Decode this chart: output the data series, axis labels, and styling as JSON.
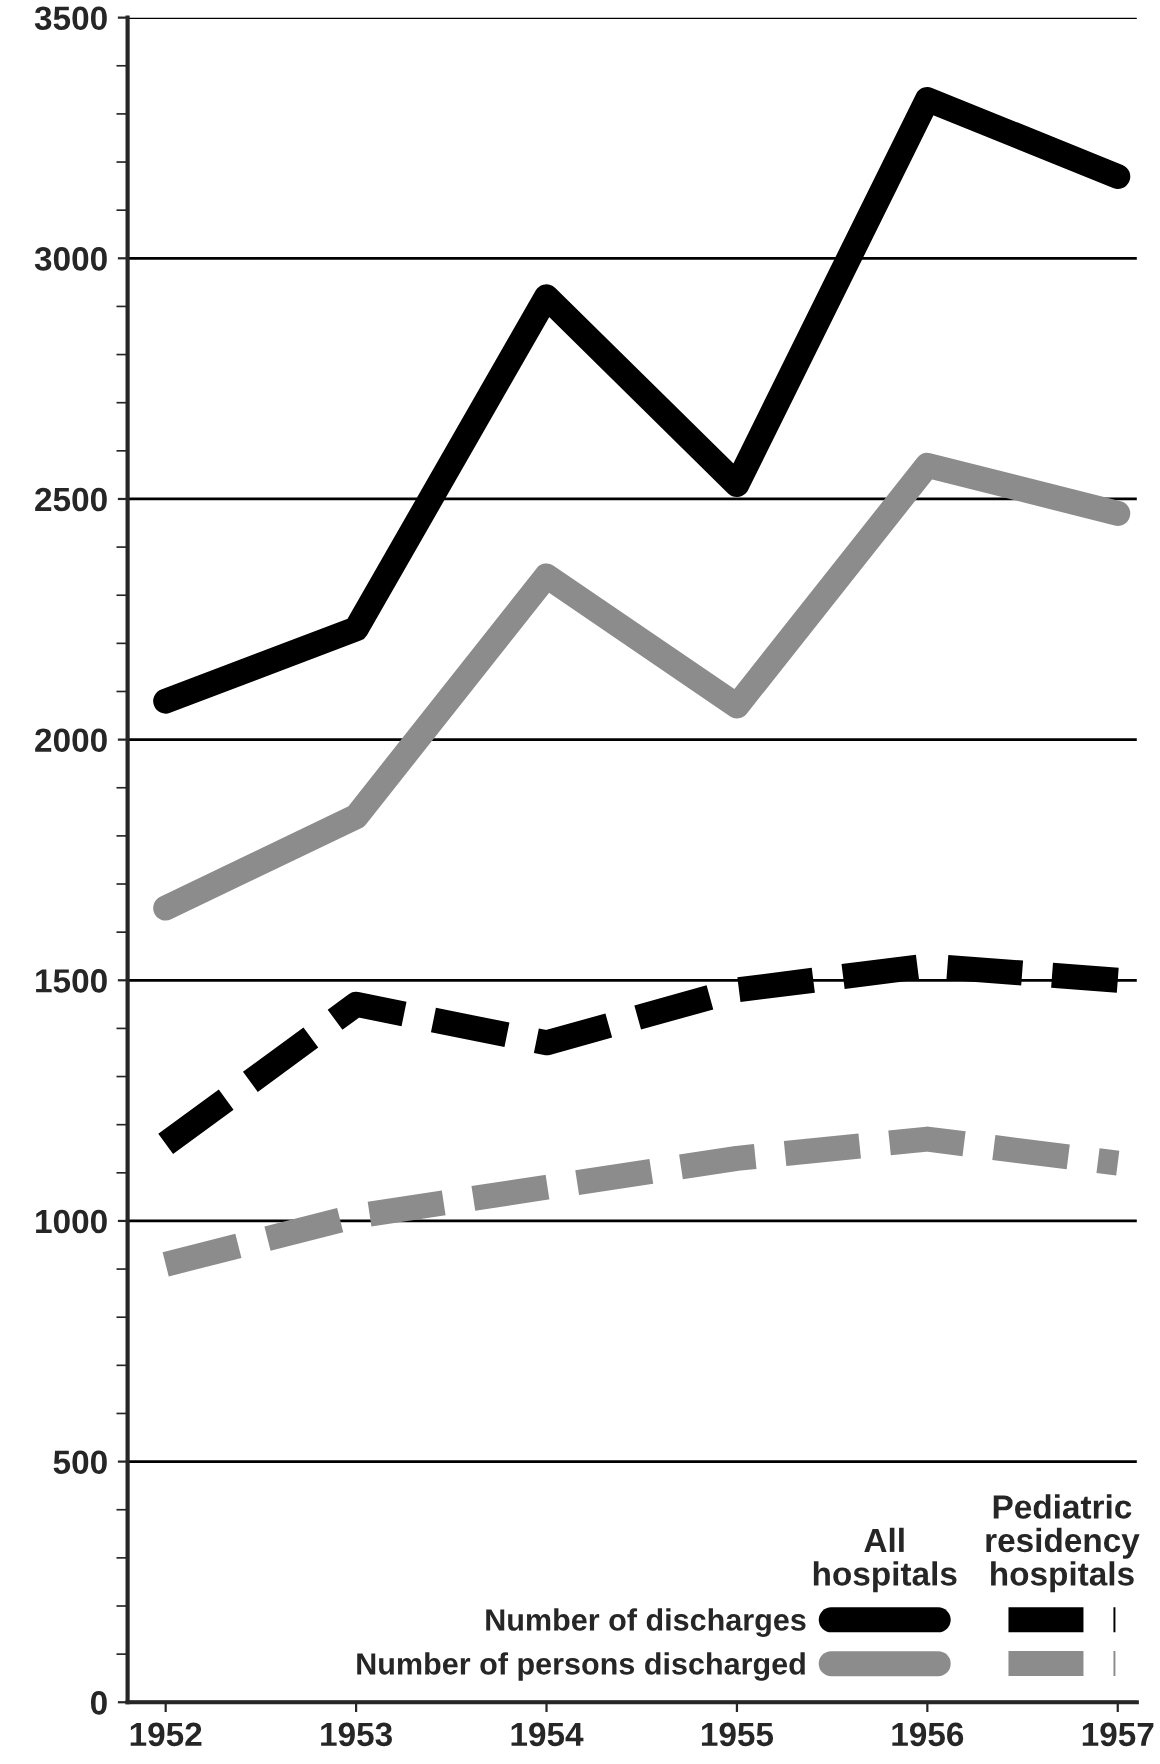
{
  "chart_data": {
    "type": "line",
    "x": [
      1952,
      1953,
      1954,
      1955,
      1956,
      1957
    ],
    "series": [
      {
        "name": "Number of discharges",
        "color": "#000000",
        "line_style": "solid",
        "values": [
          2080,
          2230,
          2920,
          2530,
          3330,
          3170
        ]
      },
      {
        "name": "Number of persons discharged",
        "color": "#8c8c8c",
        "line_style": "solid",
        "values": [
          1650,
          1840,
          2340,
          2070,
          2570,
          2470
        ]
      },
      {
        "color": "#000000",
        "line_style": "dashed",
        "values": [
          1160,
          1450,
          1370,
          1480,
          1530,
          1500
        ]
      },
      {
        "color": "#8c8c8c",
        "line_style": "dashed",
        "values": [
          910,
          1010,
          1070,
          1130,
          1170,
          1120
        ]
      }
    ],
    "xlim": [
      1951.8,
      1957.1
    ],
    "xticks": [
      1952,
      1953,
      1954,
      1955,
      1956,
      1957
    ],
    "ylim": [
      0,
      3500
    ],
    "yticks": [
      0,
      500,
      1000,
      1500,
      2000,
      2500,
      3000,
      3500
    ],
    "grid": "y",
    "legend": "bottom right",
    "marker": "none",
    "annotations": [
      "All\nhospitals",
      "Pediatric\nresidency\nhospitals"
    ]
  }
}
